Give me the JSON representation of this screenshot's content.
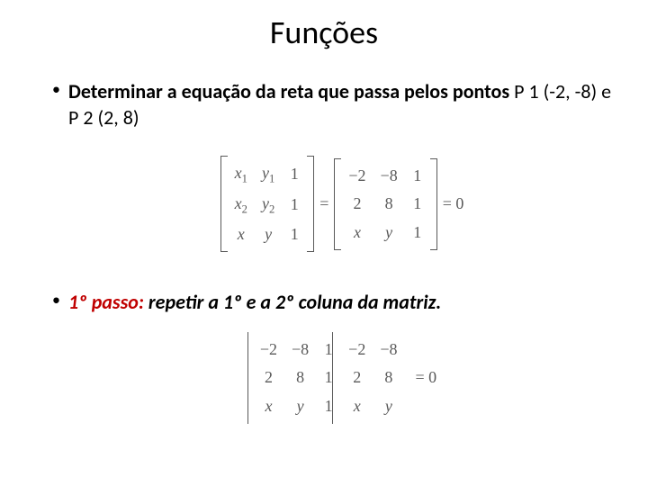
{
  "title": "Funções",
  "bullet1_bold": "Determinar a equação da reta que passa pelos pontos",
  "bullet1_rest": " P 1 (-2, -8) e P 2 (2, 8)",
  "bullet2_prefix": "1º passo:",
  "bullet2_rest": " repetir a 1º e a 2º coluna da matriz.",
  "matrix1": {
    "type": "bracket-matrix",
    "rows": [
      [
        "x<span class='sub'>1</span>",
        "y<span class='sub'>1</span>",
        "1"
      ],
      [
        "x<span class='sub'>2</span>",
        "y<span class='sub'>2</span>",
        "1"
      ],
      [
        "x",
        "y",
        "1"
      ]
    ]
  },
  "matrix2": {
    "type": "bracket-matrix",
    "rows": [
      [
        "−2",
        "−8",
        "1"
      ],
      [
        "2",
        "8",
        "1"
      ],
      [
        "x",
        "y",
        "1"
      ]
    ]
  },
  "eq_symbol": "=",
  "eq_zero": "= 0",
  "det": {
    "type": "determinant-extended",
    "rows": [
      [
        "−2",
        "−8",
        "1",
        "−2",
        "−8"
      ],
      [
        "2",
        "8",
        "1",
        "2",
        "8"
      ],
      [
        "x",
        "y",
        "1",
        "x",
        "y"
      ]
    ]
  },
  "colors": {
    "text": "#000000",
    "math_text": "#595959",
    "accent_red": "#c00000",
    "background": "#ffffff"
  },
  "fonts": {
    "title_size": 36,
    "body_size": 22,
    "math_size": 18
  }
}
